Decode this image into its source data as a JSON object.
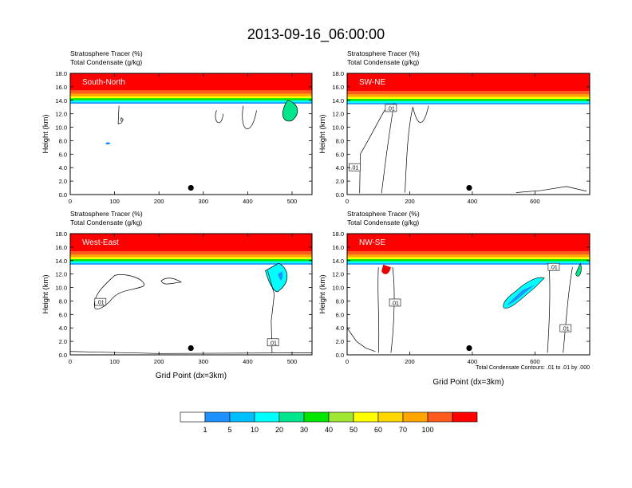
{
  "figure_title": "2013-09-16_06:00:00",
  "colorbar": {
    "colors": [
      "#ffffff",
      "#1e90ff",
      "#00bfff",
      "#00ffff",
      "#00e68c",
      "#00e600",
      "#a0e632",
      "#ffff00",
      "#ffd700",
      "#ffa500",
      "#ff5a1e",
      "#ff0000"
    ],
    "labels": [
      "1",
      "5",
      "10",
      "20",
      "30",
      "40",
      "50",
      "60",
      "70",
      "100"
    ]
  },
  "footnote": "Total Condensate Contours: .01 to .01 by .000",
  "chart_data": [
    {
      "type": "heatmap",
      "panel": "top-left",
      "label": "South-North",
      "title_lines": [
        "Stratosphere Tracer   (%)",
        "Total Condensate   (g/kg)"
      ],
      "ylabel": "Height (km)",
      "xlabel": "",
      "xlim": [
        0,
        545
      ],
      "ylim": [
        0,
        18
      ],
      "xticks": [
        0,
        100,
        200,
        300,
        400,
        500
      ],
      "yticks": [
        "0.0",
        "2.0",
        "4.0",
        "6.0",
        "8.0",
        "10.0",
        "12.0",
        "14.0",
        "16.0",
        "18.0"
      ],
      "tracer_base_km": 13.7,
      "contour_level": ".01",
      "contour_labels": [],
      "marker": {
        "x": 272,
        "y": 1.0
      }
    },
    {
      "type": "heatmap",
      "panel": "top-right",
      "label": "SW-NE",
      "title_lines": [
        "Stratosphere Tracer   (%)",
        "Total Condensate   (g/kg)"
      ],
      "ylabel": "Height (km)",
      "xlabel": "",
      "xlim": [
        0,
        775
      ],
      "ylim": [
        0,
        18
      ],
      "xticks": [
        0,
        200,
        400,
        600
      ],
      "yticks": [
        "0.0",
        "2.0",
        "4.0",
        "6.0",
        "8.0",
        "10.0",
        "12.0",
        "14.0",
        "16.0",
        "18.0"
      ],
      "tracer_base_km": 13.6,
      "contour_level": ".01",
      "contour_labels": [
        {
          "x": 140,
          "y": 12.8,
          "text": ".01"
        },
        {
          "x": 24,
          "y": 4.0,
          "text": ".01"
        }
      ],
      "marker": {
        "x": 390,
        "y": 1.0
      }
    },
    {
      "type": "heatmap",
      "panel": "bottom-left",
      "label": "West-East",
      "title_lines": [
        "Stratosphere Tracer   (%)",
        "Total Condensate   (g/kg)"
      ],
      "ylabel": "Height (km)",
      "xlabel": "Grid Point (dx=3km)",
      "xlim": [
        0,
        545
      ],
      "ylim": [
        0,
        18
      ],
      "xticks": [
        0,
        100,
        200,
        300,
        400,
        500
      ],
      "yticks": [
        "0.0",
        "2.0",
        "4.0",
        "6.0",
        "8.0",
        "10.0",
        "12.0",
        "14.0",
        "16.0",
        "18.0"
      ],
      "tracer_base_km": 13.6,
      "contour_level": ".01",
      "contour_labels": [
        {
          "x": 68,
          "y": 7.8,
          "text": ".01"
        },
        {
          "x": 457,
          "y": 1.8,
          "text": ".01"
        }
      ],
      "marker": {
        "x": 272,
        "y": 1.0
      }
    },
    {
      "type": "heatmap",
      "panel": "bottom-right",
      "label": "NW-SE",
      "title_lines": [
        "Stratosphere Tracer   (%)",
        "Total Condensate   (g/kg)"
      ],
      "ylabel": "Height (km)",
      "xlabel": "Grid Point (dx=3km)",
      "xlim": [
        0,
        775
      ],
      "ylim": [
        0,
        18
      ],
      "xticks": [
        0,
        200,
        400,
        600
      ],
      "yticks": [
        "0.0",
        "2.0",
        "4.0",
        "6.0",
        "8.0",
        "10.0",
        "12.0",
        "14.0",
        "16.0",
        "18.0"
      ],
      "tracer_base_km": 13.6,
      "contour_level": ".01",
      "contour_labels": [
        {
          "x": 153,
          "y": 7.7,
          "text": ".01"
        },
        {
          "x": 660,
          "y": 13.0,
          "text": ".01"
        },
        {
          "x": 698,
          "y": 3.9,
          "text": ".01"
        }
      ],
      "marker": {
        "x": 390,
        "y": 1.0
      }
    }
  ]
}
